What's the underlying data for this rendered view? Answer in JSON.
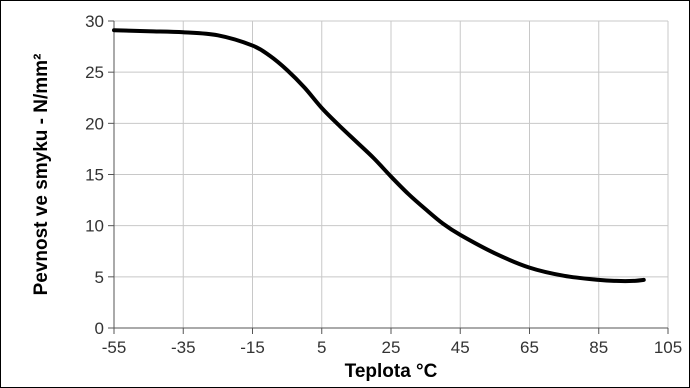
{
  "chart_data": {
    "type": "line",
    "xlabel": "Teplota °C",
    "ylabel": "Pevnost ve smyku - N/mm²",
    "xlim": [
      -55,
      105
    ],
    "ylim": [
      0,
      30
    ],
    "x_ticks": [
      -55,
      -35,
      -15,
      5,
      25,
      45,
      65,
      85,
      105
    ],
    "y_ticks": [
      0,
      5,
      10,
      15,
      20,
      25,
      30
    ],
    "grid": true,
    "legend": "none",
    "series": [
      {
        "color": "#000000",
        "x": [
          -55,
          -45,
          -35,
          -25,
          -15,
          -10,
          -5,
          0,
          5,
          10,
          15,
          20,
          25,
          30,
          35,
          40,
          45,
          55,
          65,
          75,
          85,
          90,
          95,
          98
        ],
        "y": [
          29.1,
          29.0,
          28.9,
          28.6,
          27.6,
          26.6,
          25.2,
          23.5,
          21.5,
          19.8,
          18.2,
          16.6,
          14.8,
          13.1,
          11.6,
          10.2,
          9.1,
          7.3,
          5.9,
          5.1,
          4.7,
          4.6,
          4.6,
          4.7
        ]
      }
    ]
  }
}
